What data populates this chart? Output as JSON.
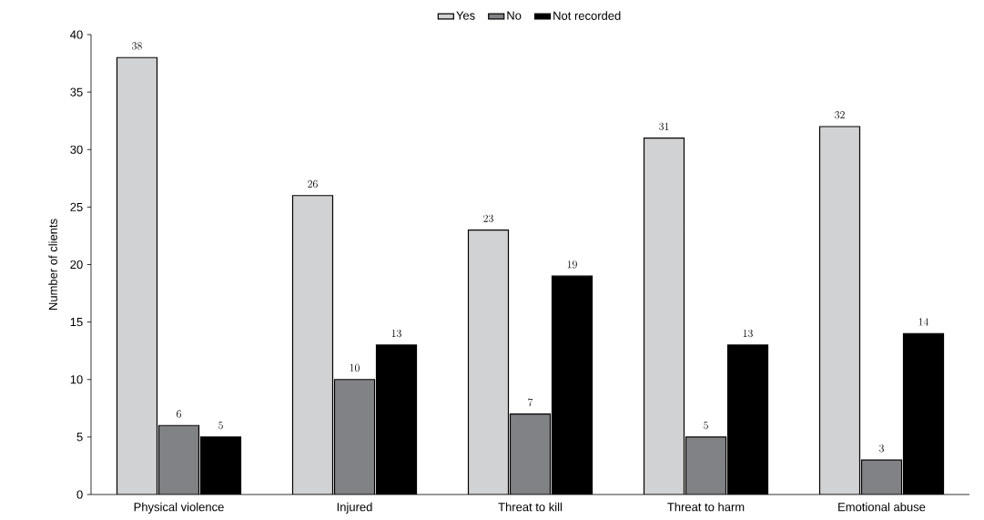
{
  "chart_data": {
    "type": "bar",
    "ylabel": "Number of clients",
    "categories": [
      "Physical violence",
      "Injured",
      "Threat to kill",
      "Threat to harm",
      "Emotional abuse"
    ],
    "series": [
      {
        "name": "Yes",
        "color": "#d1d2d4",
        "values": [
          38,
          26,
          23,
          31,
          32
        ]
      },
      {
        "name": "No",
        "color": "#808285",
        "values": [
          6,
          10,
          7,
          5,
          3
        ]
      },
      {
        "name": "Not recorded",
        "color": "#000000",
        "values": [
          5,
          13,
          19,
          13,
          14
        ]
      }
    ],
    "ylim": [
      0,
      40
    ],
    "yticks": [
      0,
      5,
      10,
      15,
      20,
      25,
      30,
      35,
      40
    ],
    "data_labels": true,
    "legend": "top",
    "grid": false
  }
}
